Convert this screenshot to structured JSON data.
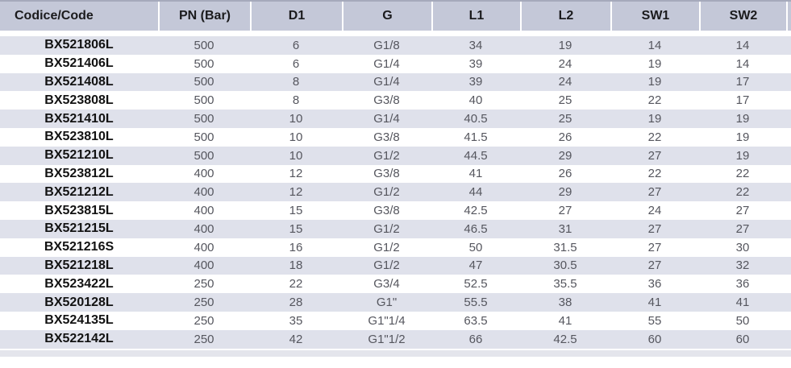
{
  "table": {
    "columns": [
      "Codice/Code",
      "PN (Bar)",
      "D1",
      "G",
      "L1",
      "L2",
      "SW1",
      "SW2"
    ],
    "rows": [
      [
        "BX521806L",
        "500",
        "6",
        "G1/8",
        "34",
        "19",
        "14",
        "14"
      ],
      [
        "BX521406L",
        "500",
        "6",
        "G1/4",
        "39",
        "24",
        "19",
        "14"
      ],
      [
        "BX521408L",
        "500",
        "8",
        "G1/4",
        "39",
        "24",
        "19",
        "17"
      ],
      [
        "BX523808L",
        "500",
        "8",
        "G3/8",
        "40",
        "25",
        "22",
        "17"
      ],
      [
        "BX521410L",
        "500",
        "10",
        "G1/4",
        "40.5",
        "25",
        "19",
        "19"
      ],
      [
        "BX523810L",
        "500",
        "10",
        "G3/8",
        "41.5",
        "26",
        "22",
        "19"
      ],
      [
        "BX521210L",
        "500",
        "10",
        "G1/2",
        "44.5",
        "29",
        "27",
        "19"
      ],
      [
        "BX523812L",
        "400",
        "12",
        "G3/8",
        "41",
        "26",
        "22",
        "22"
      ],
      [
        "BX521212L",
        "400",
        "12",
        "G1/2",
        "44",
        "29",
        "27",
        "22"
      ],
      [
        "BX523815L",
        "400",
        "15",
        "G3/8",
        "42.5",
        "27",
        "24",
        "27"
      ],
      [
        "BX521215L",
        "400",
        "15",
        "G1/2",
        "46.5",
        "31",
        "27",
        "27"
      ],
      [
        "BX521216S",
        "400",
        "16",
        "G1/2",
        "50",
        "31.5",
        "27",
        "30"
      ],
      [
        "BX521218L",
        "400",
        "18",
        "G1/2",
        "47",
        "30.5",
        "27",
        "32"
      ],
      [
        "BX523422L",
        "250",
        "22",
        "G3/4",
        "52.5",
        "35.5",
        "36",
        "36"
      ],
      [
        "BX520128L",
        "250",
        "28",
        "G1\"",
        "55.5",
        "38",
        "41",
        "41"
      ],
      [
        "BX524135L",
        "250",
        "35",
        "G1\"1/4",
        "63.5",
        "41",
        "55",
        "50"
      ],
      [
        "BX522142L",
        "250",
        "42",
        "G1\"1/2",
        "66",
        "42.5",
        "60",
        "60"
      ]
    ]
  },
  "colors": {
    "header_bg": "#c4c8d8",
    "stripe_bg": "#dfe1eb",
    "top_line": "#a6aabb",
    "bottom_band": "#e4e5ec",
    "header_text": "#1b1b1d",
    "code_text": "#121212",
    "value_text": "#55565e"
  }
}
